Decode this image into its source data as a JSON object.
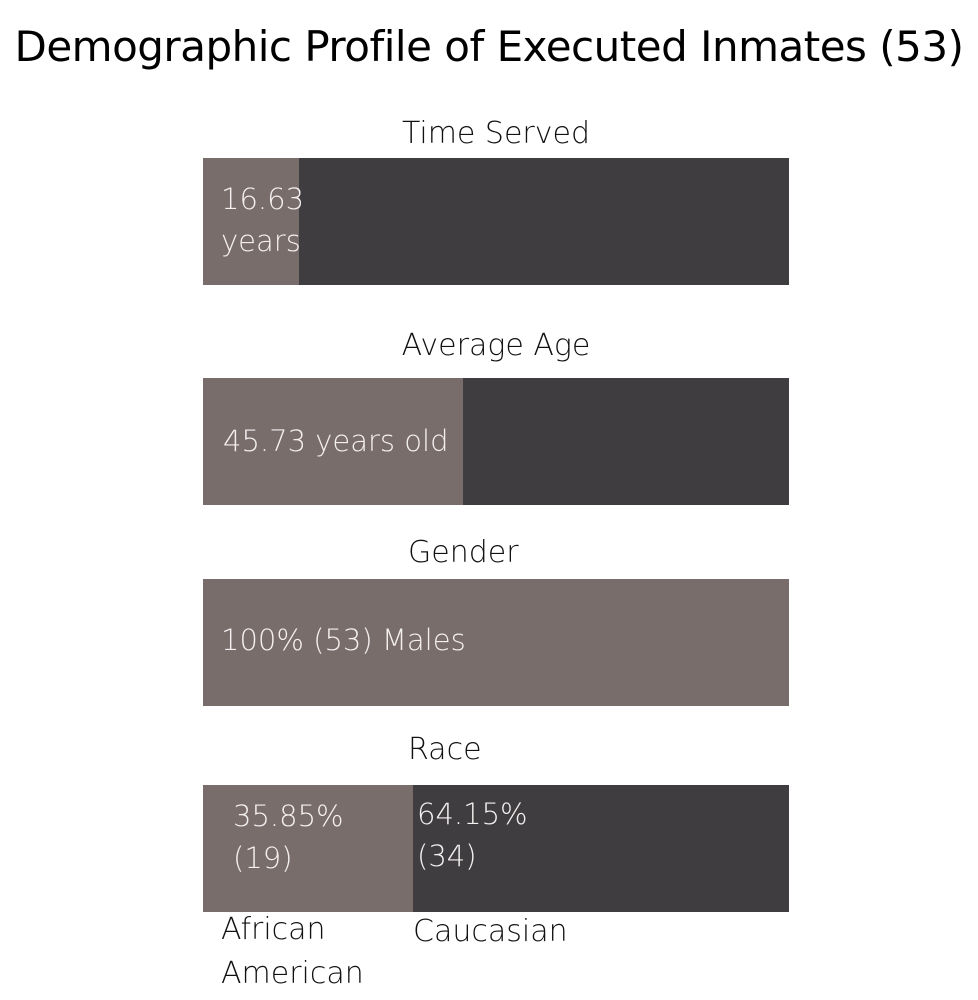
{
  "chart_data": {
    "type": "bar",
    "title": "Demographic Profile of Executed Inmates (53)",
    "colors": {
      "primary": "#796d6c",
      "secondary": "#403d40"
    },
    "panels": [
      {
        "label": "Time Served",
        "segments": [
          {
            "value": 16.63,
            "fraction": 0.164,
            "label": "16.63\nyears",
            "color": "#796d6c"
          },
          {
            "fraction": 0.836,
            "label": "",
            "color": "#403d40"
          }
        ]
      },
      {
        "label": "Average Age",
        "segments": [
          {
            "value": 45.73,
            "fraction": 0.444,
            "label": "45.73 years old",
            "color": "#796d6c"
          },
          {
            "fraction": 0.556,
            "label": "",
            "color": "#403d40"
          }
        ]
      },
      {
        "label": "Gender",
        "segments": [
          {
            "value": 100,
            "count": 53,
            "fraction": 1.0,
            "label": "100% (53) Males",
            "color": "#796d6c"
          }
        ]
      },
      {
        "label": "Race",
        "segments": [
          {
            "value": 35.85,
            "count": 19,
            "fraction": 0.3585,
            "label": "35.85%\n(19)",
            "category": "African\nAmerican",
            "color": "#796d6c"
          },
          {
            "value": 64.15,
            "count": 34,
            "fraction": 0.6415,
            "label": "64.15%\n(34)",
            "category": "Caucasian",
            "color": "#403d40"
          }
        ]
      }
    ]
  }
}
